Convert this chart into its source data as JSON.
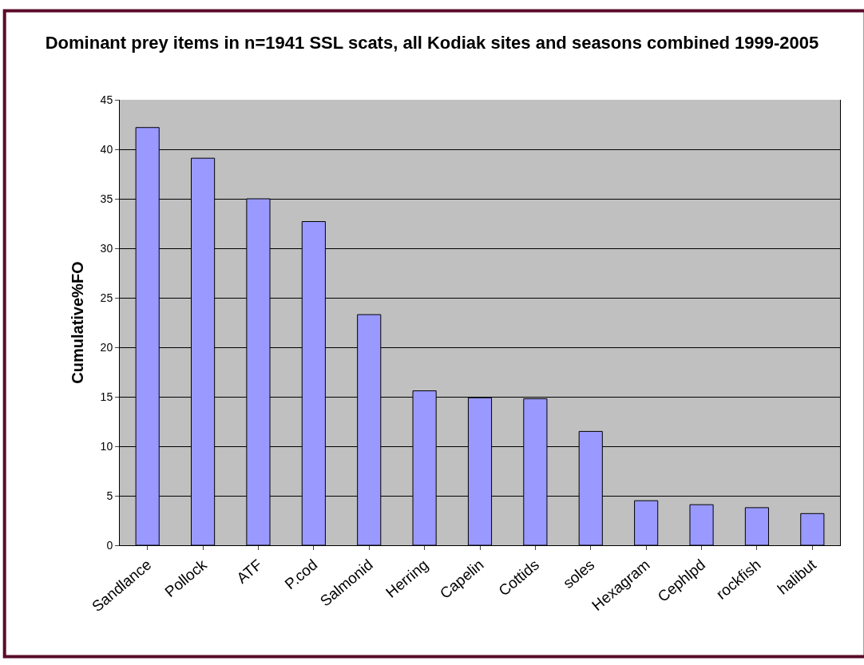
{
  "chart_data": {
    "type": "bar",
    "title": "Dominant prey items in n=1941 SSL scats, all Kodiak sites and seasons combined 1999-2005",
    "ylabel": "Cumulative%FO",
    "categories": [
      "Sandlance",
      "Pollock",
      "ATF",
      "P.cod",
      "Salmonid",
      "Herring",
      "Capelin",
      "Cottids",
      "soles",
      "Hexagram",
      "Cephlpd",
      "rockfish",
      "halibut"
    ],
    "values": [
      42.2,
      39.1,
      35.0,
      32.7,
      23.3,
      15.6,
      14.9,
      14.8,
      11.5,
      4.5,
      4.1,
      3.8,
      3.2
    ],
    "color": "#9999ff",
    "ylim": [
      0,
      45
    ],
    "yticks": [
      0,
      5,
      10,
      15,
      20,
      25,
      30,
      35,
      40,
      45
    ],
    "grid": "y",
    "legend": false
  }
}
